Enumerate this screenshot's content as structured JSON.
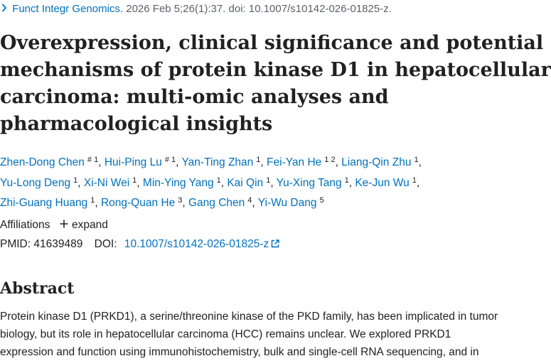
{
  "citation": {
    "journal": "Funct Integr Genomics.",
    "details": "2026 Feb 5;26(1):37. doi: 10.1007/s10142-026-01825-z."
  },
  "title_lines": [
    "Overexpression, clinical significance and potential",
    "mechanisms of protein kinase D1 in hepatocellular",
    "carcinoma: multi-omic analyses and",
    "pharmacological insights"
  ],
  "authors": [
    {
      "name": "Zhen-Dong Chen",
      "sup": "# 1"
    },
    {
      "name": "Hui-Ping Lu",
      "sup": "# 1"
    },
    {
      "name": "Yan-Ting Zhan",
      "sup": "1"
    },
    {
      "name": "Fei-Yan He",
      "sup": "1 2"
    },
    {
      "name": "Liang-Qin Zhu",
      "sup": "1"
    },
    {
      "name": "Yu-Long Deng",
      "sup": "1"
    },
    {
      "name": "Xi-Ni Wei",
      "sup": "1"
    },
    {
      "name": "Min-Ying Yang",
      "sup": "1"
    },
    {
      "name": "Kai Qin",
      "sup": "1"
    },
    {
      "name": "Yu-Xing Tang",
      "sup": "1"
    },
    {
      "name": "Ke-Jun Wu",
      "sup": "1"
    },
    {
      "name": "Zhi-Guang Huang",
      "sup": "1"
    },
    {
      "name": "Rong-Quan He",
      "sup": "3"
    },
    {
      "name": "Gang Chen",
      "sup": "4"
    },
    {
      "name": "Yi-Wu Dang",
      "sup": "5"
    }
  ],
  "affiliations": {
    "label": "Affiliations",
    "toggle": "expand"
  },
  "identifiers": {
    "pmid_label": "PMID:",
    "pmid": "41639489",
    "doi_label": "DOI:",
    "doi": "10.1007/s10142-026-01825-z"
  },
  "abstract": {
    "heading": "Abstract",
    "lines": [
      "Protein kinase D1 (PRKD1), a serine/threonine kinase of the PKD family, has been implicated in tumor",
      "biology, but its role in hepatocellular carcinoma (HCC) remains unclear. We explored PRKD1",
      "expression and function using immunohistochemistry, bulk and single-cell RNA sequencing, and in"
    ]
  },
  "colors": {
    "link": "#0071bc",
    "text": "#212121",
    "muted": "#5b616b"
  },
  "icons": {
    "citation": "chevron-right-icon",
    "expand": "plus-icon",
    "doi": "external-link-icon"
  }
}
